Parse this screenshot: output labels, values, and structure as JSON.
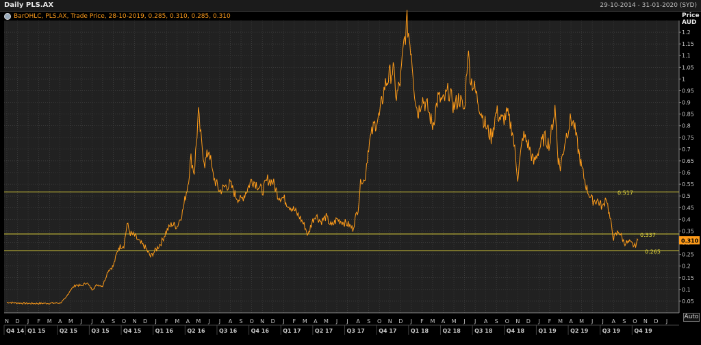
{
  "header": {
    "title": "Daily PLS.AX",
    "range": "29-10-2014 - 31-01-2020 (SYD)"
  },
  "legend": {
    "text": "BarOHLC, PLS.AX, Trade Price, 28-10-2019, 0.285, 0.310, 0.285, 0.310"
  },
  "axis": {
    "y_title_line1": "Price",
    "y_title_line2": "AUD",
    "auto_label": "Auto"
  },
  "colors": {
    "background": "#000000",
    "plot_background": "#212121",
    "grid": "#4a4a4a",
    "series": "#ff9c1a",
    "level_line": "#e0d33c",
    "tick_text": "#c8c8c8",
    "last_price_box": "#ff9c1a"
  },
  "chart_data": {
    "type": "line",
    "title": "Daily PLS.AX",
    "series_name": "PLS.AX",
    "ylabel": "Price AUD",
    "ylim": [
      0.0,
      1.25
    ],
    "y_ticks": [
      0.05,
      0.1,
      0.15,
      0.2,
      0.25,
      0.3,
      0.35,
      0.4,
      0.45,
      0.5,
      0.55,
      0.6,
      0.65,
      0.7,
      0.75,
      0.8,
      0.85,
      0.9,
      0.95,
      1.0,
      1.05,
      1.1,
      1.15,
      1.2
    ],
    "y_tick_labels": [
      "0.05",
      "0.1",
      "0.15",
      "0.2",
      "0.25",
      "0.3",
      "0.35",
      "0.4",
      "0.45",
      "0.5",
      "0.55",
      "0.6",
      "0.65",
      "0.7",
      "0.75",
      "0.8",
      "0.85",
      "0.9",
      "0.95",
      "1",
      "1.05",
      "1.1",
      "1.15",
      "1.2"
    ],
    "month_labels": [
      "N",
      "D",
      "J",
      "F",
      "M",
      "A",
      "M",
      "J",
      "J",
      "A",
      "S",
      "O",
      "N",
      "D",
      "J",
      "F",
      "M",
      "A",
      "M",
      "J",
      "J",
      "A",
      "S",
      "O",
      "N",
      "D",
      "J",
      "F",
      "M",
      "A",
      "M",
      "J",
      "J",
      "A",
      "S",
      "O",
      "N",
      "D",
      "J",
      "F",
      "M",
      "A",
      "M",
      "J",
      "J",
      "A",
      "S",
      "O",
      "N",
      "D",
      "J",
      "F",
      "M",
      "A",
      "M",
      "J",
      "J",
      "A",
      "S",
      "O",
      "N",
      "D",
      "J"
    ],
    "quarter_labels": [
      {
        "label": "Q4 14",
        "month_index": 0
      },
      {
        "label": "Q1 15",
        "month_index": 2
      },
      {
        "label": "Q2 15",
        "month_index": 5
      },
      {
        "label": "Q3 15",
        "month_index": 8
      },
      {
        "label": "Q4 15",
        "month_index": 11
      },
      {
        "label": "Q1 16",
        "month_index": 14
      },
      {
        "label": "Q2 16",
        "month_index": 17
      },
      {
        "label": "Q3 16",
        "month_index": 20
      },
      {
        "label": "Q4 16",
        "month_index": 23
      },
      {
        "label": "Q1 17",
        "month_index": 26
      },
      {
        "label": "Q2 17",
        "month_index": 29
      },
      {
        "label": "Q3 17",
        "month_index": 32
      },
      {
        "label": "Q4 17",
        "month_index": 35
      },
      {
        "label": "Q1 18",
        "month_index": 38
      },
      {
        "label": "Q2 18",
        "month_index": 41
      },
      {
        "label": "Q3 18",
        "month_index": 44
      },
      {
        "label": "Q4 18",
        "month_index": 47
      },
      {
        "label": "Q1 19",
        "month_index": 50
      },
      {
        "label": "Q2 19",
        "month_index": 53
      },
      {
        "label": "Q3 19",
        "month_index": 56
      },
      {
        "label": "Q4 19",
        "month_index": 59
      }
    ],
    "horizontal_lines": [
      {
        "label": "0.517",
        "value": 0.517
      },
      {
        "label": "0.337",
        "value": 0.337
      },
      {
        "label": "0.265",
        "value": 0.265
      }
    ],
    "last_price": {
      "label": "0.310",
      "value": 0.31
    },
    "points": [
      [
        0.0,
        0.045
      ],
      [
        1.0,
        0.042
      ],
      [
        2.0,
        0.04
      ],
      [
        3.0,
        0.04
      ],
      [
        4.0,
        0.041
      ],
      [
        5.0,
        0.042
      ],
      [
        5.5,
        0.06
      ],
      [
        6.0,
        0.1
      ],
      [
        6.5,
        0.12
      ],
      [
        7.0,
        0.115
      ],
      [
        7.5,
        0.13
      ],
      [
        8.0,
        0.1
      ],
      [
        8.5,
        0.12
      ],
      [
        9.0,
        0.115
      ],
      [
        9.5,
        0.18
      ],
      [
        10.0,
        0.2
      ],
      [
        10.5,
        0.28
      ],
      [
        11.0,
        0.29
      ],
      [
        11.3,
        0.38
      ],
      [
        11.6,
        0.34
      ],
      [
        12.0,
        0.33
      ],
      [
        12.5,
        0.3
      ],
      [
        13.0,
        0.28
      ],
      [
        13.5,
        0.24
      ],
      [
        14.0,
        0.27
      ],
      [
        14.5,
        0.3
      ],
      [
        15.0,
        0.35
      ],
      [
        15.5,
        0.38
      ],
      [
        16.0,
        0.37
      ],
      [
        16.5,
        0.43
      ],
      [
        17.0,
        0.55
      ],
      [
        17.3,
        0.66
      ],
      [
        17.6,
        0.6
      ],
      [
        18.0,
        0.85
      ],
      [
        18.3,
        0.72
      ],
      [
        18.6,
        0.64
      ],
      [
        19.0,
        0.7
      ],
      [
        19.3,
        0.6
      ],
      [
        19.6,
        0.56
      ],
      [
        20.0,
        0.52
      ],
      [
        20.5,
        0.54
      ],
      [
        21.0,
        0.55
      ],
      [
        21.5,
        0.5
      ],
      [
        22.0,
        0.48
      ],
      [
        22.5,
        0.52
      ],
      [
        23.0,
        0.57
      ],
      [
        23.5,
        0.55
      ],
      [
        24.0,
        0.52
      ],
      [
        24.5,
        0.57
      ],
      [
        25.0,
        0.56
      ],
      [
        25.5,
        0.5
      ],
      [
        26.0,
        0.49
      ],
      [
        26.5,
        0.46
      ],
      [
        27.0,
        0.44
      ],
      [
        27.5,
        0.41
      ],
      [
        28.0,
        0.37
      ],
      [
        28.3,
        0.33
      ],
      [
        28.6,
        0.38
      ],
      [
        29.0,
        0.42
      ],
      [
        29.5,
        0.39
      ],
      [
        30.0,
        0.41
      ],
      [
        30.5,
        0.37
      ],
      [
        31.0,
        0.4
      ],
      [
        31.5,
        0.39
      ],
      [
        32.0,
        0.38
      ],
      [
        32.5,
        0.36
      ],
      [
        33.0,
        0.45
      ],
      [
        33.3,
        0.58
      ],
      [
        33.6,
        0.56
      ],
      [
        34.0,
        0.72
      ],
      [
        34.5,
        0.8
      ],
      [
        35.0,
        0.84
      ],
      [
        35.5,
        0.97
      ],
      [
        36.0,
        1.02
      ],
      [
        36.3,
        1.04
      ],
      [
        36.6,
        0.92
      ],
      [
        37.0,
        1.0
      ],
      [
        37.3,
        1.15
      ],
      [
        37.6,
        1.24
      ],
      [
        38.0,
        1.12
      ],
      [
        38.3,
        0.95
      ],
      [
        38.6,
        0.85
      ],
      [
        39.0,
        0.92
      ],
      [
        39.5,
        0.88
      ],
      [
        40.0,
        0.8
      ],
      [
        40.5,
        0.92
      ],
      [
        41.0,
        0.9
      ],
      [
        41.5,
        0.95
      ],
      [
        42.0,
        0.88
      ],
      [
        42.5,
        0.92
      ],
      [
        43.0,
        0.86
      ],
      [
        43.3,
        1.12
      ],
      [
        43.6,
        1.0
      ],
      [
        44.0,
        0.95
      ],
      [
        44.5,
        0.87
      ],
      [
        45.0,
        0.8
      ],
      [
        45.5,
        0.75
      ],
      [
        46.0,
        0.86
      ],
      [
        46.5,
        0.82
      ],
      [
        47.0,
        0.85
      ],
      [
        47.5,
        0.78
      ],
      [
        48.0,
        0.58
      ],
      [
        48.5,
        0.76
      ],
      [
        49.0,
        0.72
      ],
      [
        49.5,
        0.64
      ],
      [
        50.0,
        0.7
      ],
      [
        50.5,
        0.75
      ],
      [
        51.0,
        0.72
      ],
      [
        51.5,
        0.88
      ],
      [
        51.8,
        0.66
      ],
      [
        52.0,
        0.62
      ],
      [
        52.5,
        0.75
      ],
      [
        53.0,
        0.83
      ],
      [
        53.3,
        0.8
      ],
      [
        53.6,
        0.72
      ],
      [
        54.0,
        0.62
      ],
      [
        54.5,
        0.53
      ],
      [
        55.0,
        0.48
      ],
      [
        55.5,
        0.48
      ],
      [
        56.0,
        0.45
      ],
      [
        56.3,
        0.5
      ],
      [
        56.6,
        0.42
      ],
      [
        57.0,
        0.32
      ],
      [
        57.5,
        0.35
      ],
      [
        58.0,
        0.3
      ],
      [
        58.5,
        0.3
      ],
      [
        59.0,
        0.285
      ],
      [
        59.3,
        0.31
      ]
    ]
  }
}
